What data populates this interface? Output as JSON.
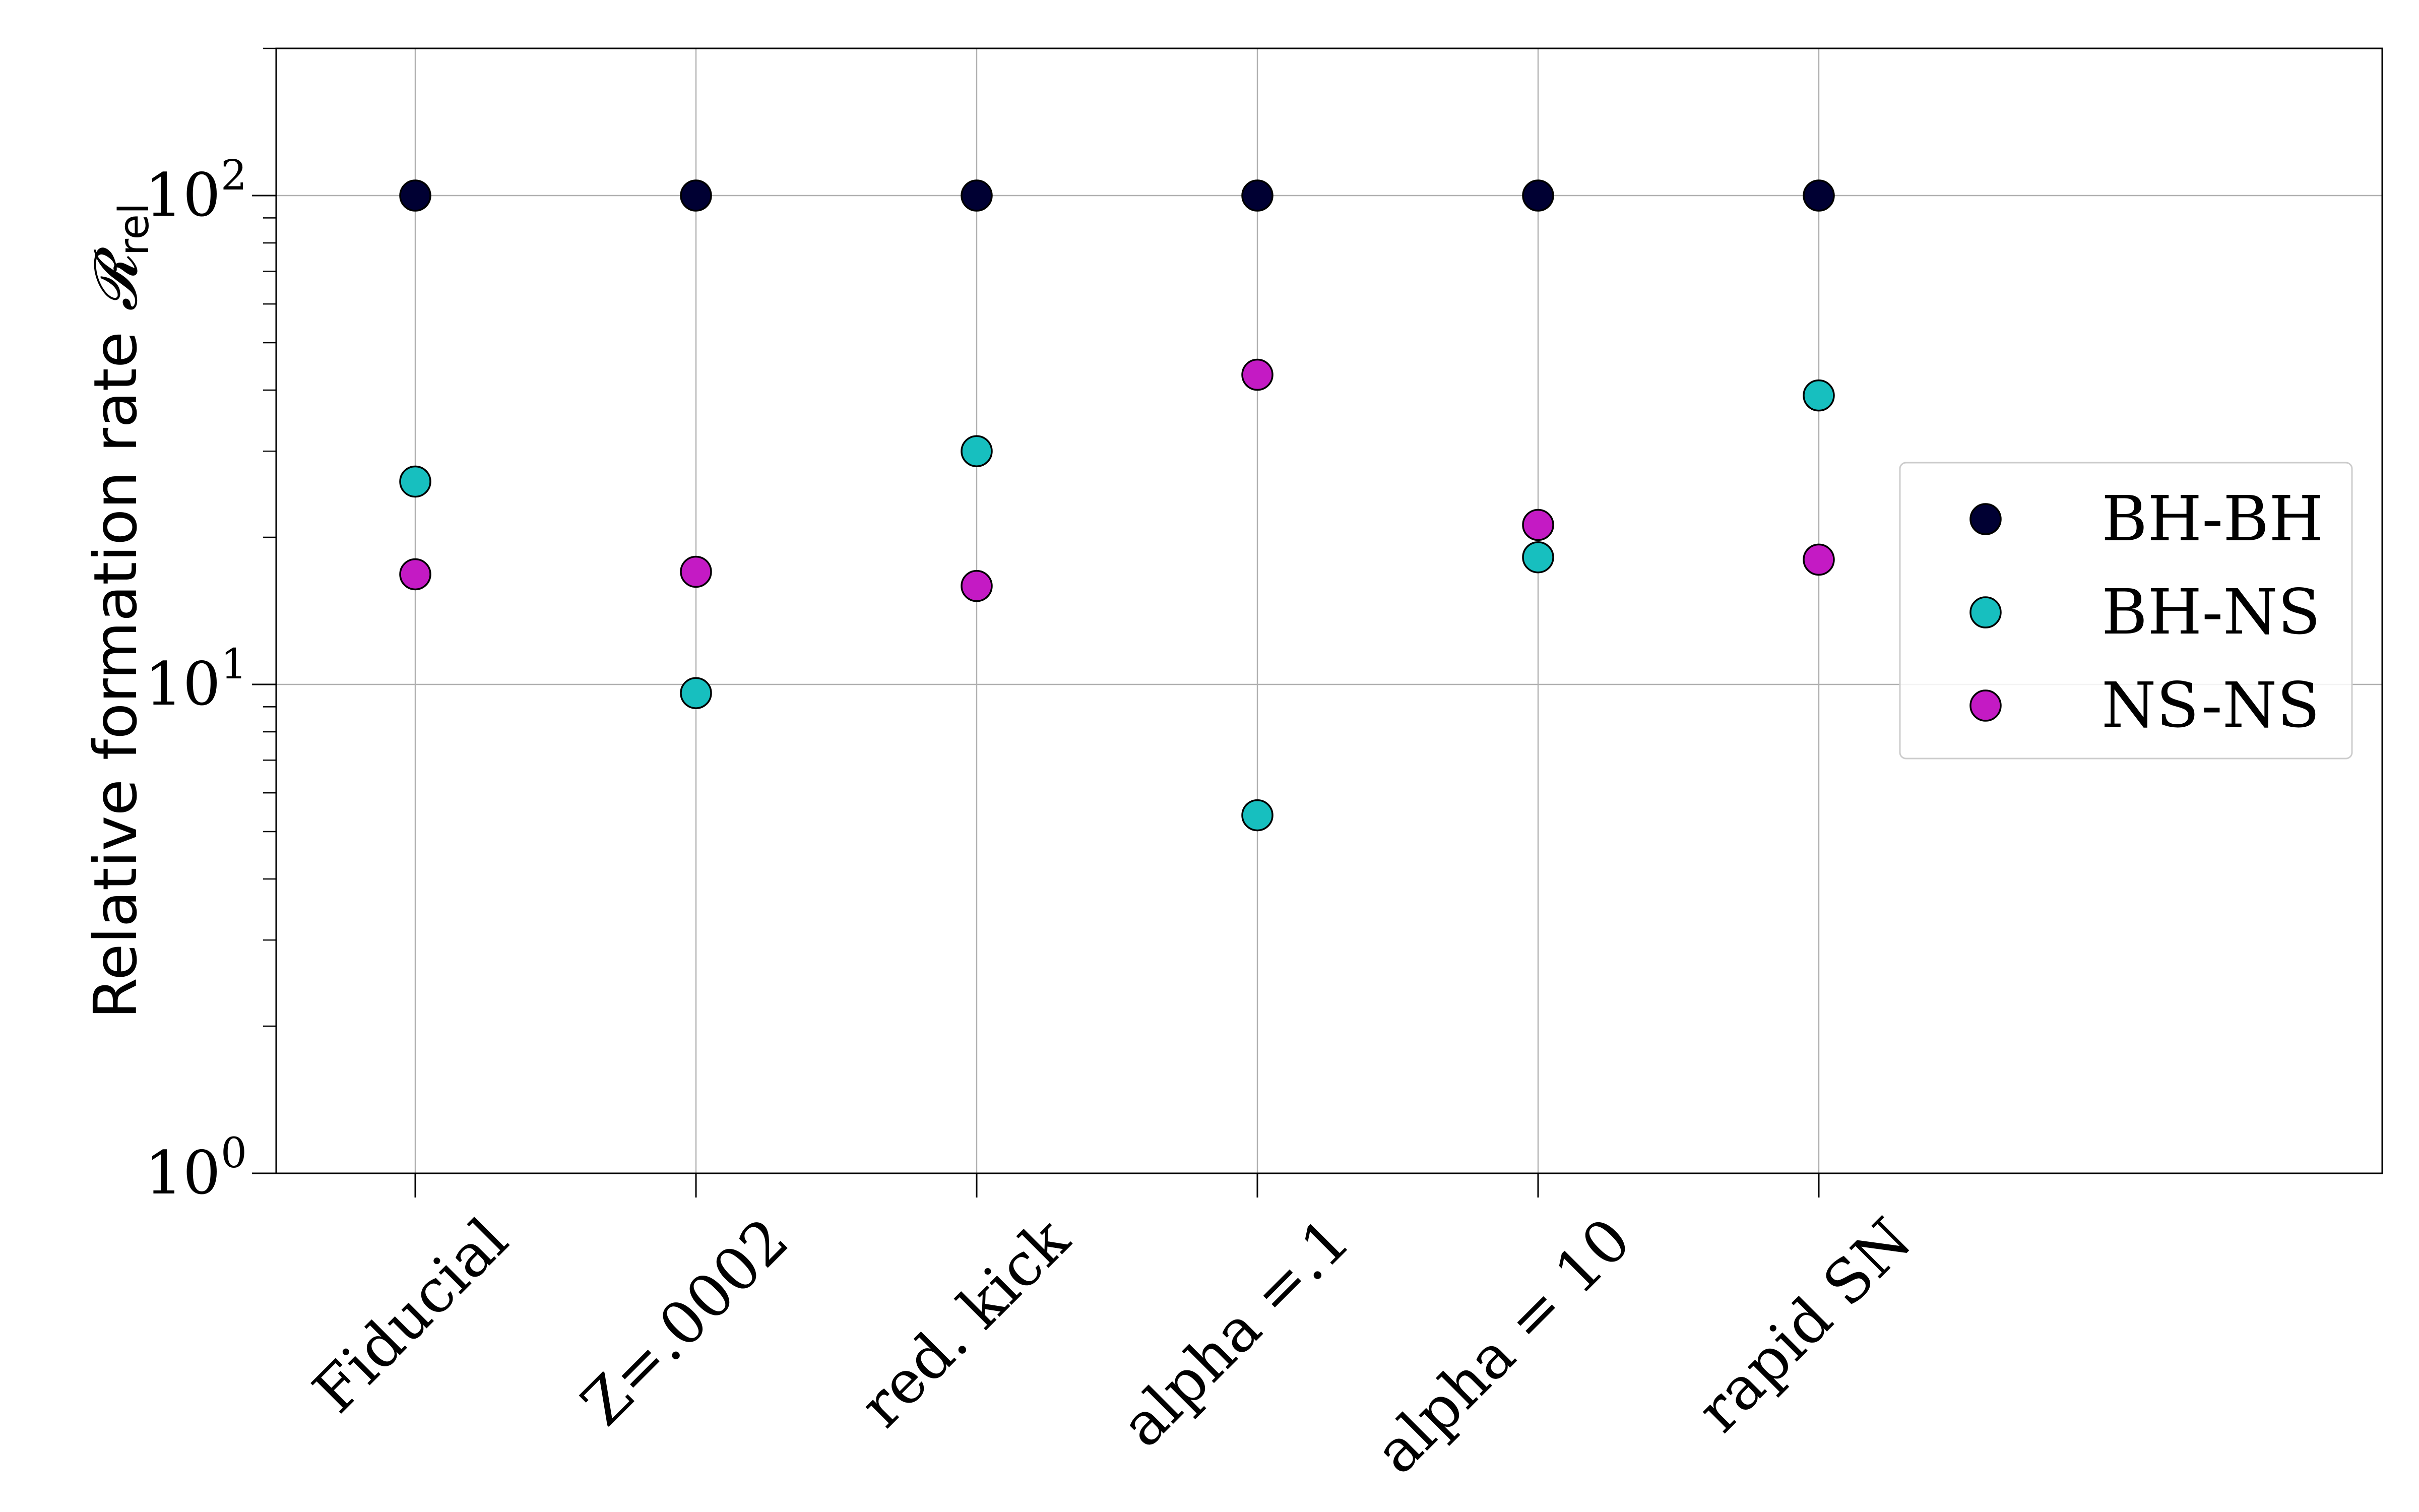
{
  "chart_data": {
    "type": "scatter",
    "title": "",
    "xlabel": "",
    "ylabel": "Relative formation rate",
    "ylabel_symbol": "𝓡",
    "ylabel_subscript": "rel",
    "yscale": "log",
    "ylim": [
      1,
      200
    ],
    "yticks": [
      {
        "value": 1,
        "base": "10",
        "exp": "0"
      },
      {
        "value": 10,
        "base": "10",
        "exp": "1"
      },
      {
        "value": 100,
        "base": "10",
        "exp": "2"
      }
    ],
    "categories": [
      "Fiducial",
      "Z=.0002",
      "red. kick",
      "alpha =.1",
      "alpha = 10",
      "rapid SN"
    ],
    "grid": true,
    "legend_position": "right",
    "series": [
      {
        "name": "BH-BH",
        "color": "#000033",
        "values": [
          100,
          100,
          100,
          100,
          100,
          100
        ]
      },
      {
        "name": "BH-NS",
        "color": "#17bfbf",
        "values": [
          26,
          9.6,
          30,
          5.4,
          18.2,
          39
        ]
      },
      {
        "name": "NS-NS",
        "color": "#c41ac4",
        "values": [
          16.8,
          17,
          15.9,
          43,
          21.2,
          18
        ]
      }
    ]
  }
}
